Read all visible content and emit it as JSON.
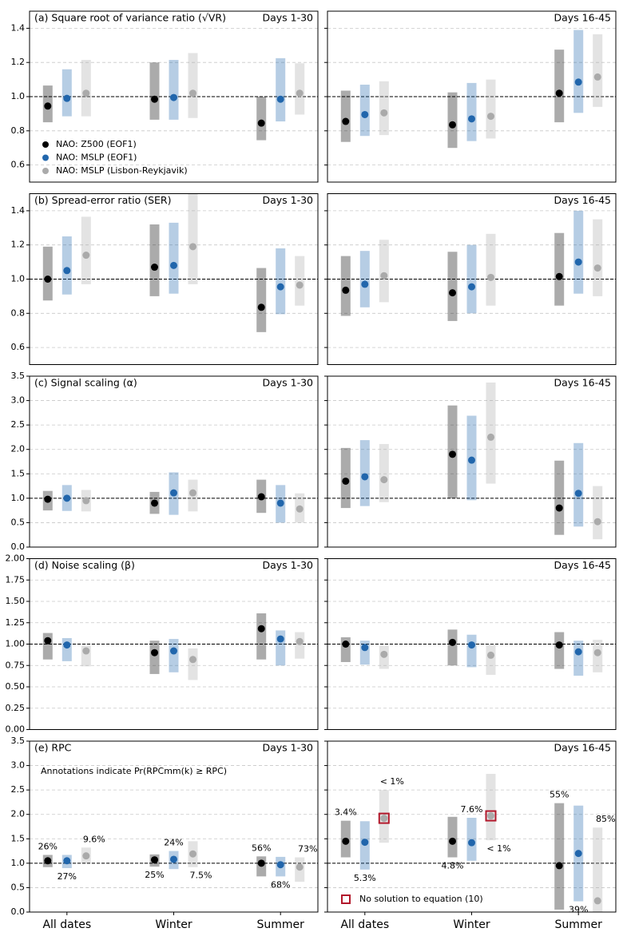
{
  "chart_data": [
    {
      "type": "interval",
      "title": "(a) Square root of variance ratio (√VR)",
      "subtitle": "Days 1-30",
      "ylim": [
        0.5,
        1.5
      ],
      "yticks": [
        0.6,
        0.8,
        {
          "value": 1,
          "label": "1.0"
        },
        1.2,
        1.4
      ],
      "refline": 1,
      "grid": true,
      "legend": "lower left",
      "series": [
        {
          "name": "NAO: Z500 (EOF1)",
          "color": "#000000",
          "values": [
            0.945,
            0.985,
            0.845
          ],
          "low": [
            0.85,
            0.865,
            0.745
          ],
          "high": [
            1.065,
            1.2,
            1.0
          ]
        },
        {
          "name": "NAO: MSLP (EOF1)",
          "color": "#2166ac",
          "values": [
            0.99,
            0.995,
            0.985
          ],
          "low": [
            0.885,
            0.865,
            0.855
          ],
          "high": [
            1.16,
            1.215,
            1.225
          ]
        },
        {
          "name": "NAO: MSLP (Lisbon-Reykjavik)",
          "color": "#aaaaaa",
          "values": [
            1.02,
            1.02,
            1.02
          ],
          "low": [
            0.885,
            0.875,
            0.895
          ],
          "high": [
            1.215,
            1.255,
            1.195
          ]
        }
      ]
    },
    {
      "type": "interval",
      "subtitle": "Days 16-45",
      "ylim": [
        0.5,
        1.5
      ],
      "yticks": [
        0.6,
        0.8,
        1,
        1.2,
        1.4
      ],
      "refline": 1,
      "grid": true,
      "series": [
        {
          "color": "#000000",
          "values": [
            0.855,
            0.835,
            1.02
          ],
          "low": [
            0.735,
            0.7,
            0.85
          ],
          "high": [
            1.035,
            1.025,
            1.275
          ]
        },
        {
          "color": "#2166ac",
          "values": [
            0.895,
            0.87,
            1.085
          ],
          "low": [
            0.77,
            0.74,
            0.905
          ],
          "high": [
            1.07,
            1.08,
            1.39
          ]
        },
        {
          "color": "#aaaaaa",
          "values": [
            0.905,
            0.885,
            1.115
          ],
          "low": [
            0.775,
            0.755,
            0.94
          ],
          "high": [
            1.09,
            1.1,
            1.365
          ]
        }
      ]
    },
    {
      "type": "interval",
      "title": "(b) Spread-error ratio (SER)",
      "subtitle": "Days 1-30",
      "ylim": [
        0.5,
        1.5
      ],
      "yticks": [
        0.6,
        0.8,
        {
          "value": 1,
          "label": "1.0"
        },
        1.2,
        1.4
      ],
      "refline": 1,
      "grid": true,
      "series": [
        {
          "color": "#000000",
          "values": [
            1.0,
            1.07,
            0.835
          ],
          "low": [
            0.875,
            0.9,
            0.69
          ],
          "high": [
            1.19,
            1.32,
            1.065
          ]
        },
        {
          "color": "#2166ac",
          "values": [
            1.05,
            1.08,
            0.955
          ],
          "low": [
            0.91,
            0.915,
            0.795
          ],
          "high": [
            1.25,
            1.33,
            1.18
          ]
        },
        {
          "color": "#aaaaaa",
          "values": [
            1.14,
            1.19,
            0.965
          ],
          "low": [
            0.97,
            0.97,
            0.845
          ],
          "high": [
            1.365,
            1.5,
            1.135
          ]
        }
      ]
    },
    {
      "type": "interval",
      "subtitle": "Days 16-45",
      "ylim": [
        0.5,
        1.5
      ],
      "yticks": [
        0.6,
        0.8,
        1,
        1.2,
        1.4
      ],
      "refline": 1,
      "grid": true,
      "series": [
        {
          "color": "#000000",
          "values": [
            0.935,
            0.92,
            1.015
          ],
          "low": [
            0.785,
            0.755,
            0.845
          ],
          "high": [
            1.135,
            1.16,
            1.27
          ]
        },
        {
          "color": "#2166ac",
          "values": [
            0.97,
            0.955,
            1.1
          ],
          "low": [
            0.835,
            0.8,
            0.915
          ],
          "high": [
            1.165,
            1.2,
            1.4
          ]
        },
        {
          "color": "#aaaaaa",
          "values": [
            1.02,
            1.01,
            1.065
          ],
          "low": [
            0.865,
            0.845,
            0.9
          ],
          "high": [
            1.23,
            1.265,
            1.35
          ]
        }
      ]
    },
    {
      "type": "interval",
      "title": "(c) Signal scaling (α)",
      "subtitle": "Days 1-30",
      "ylim": [
        0,
        3.5
      ],
      "yticks": [
        {
          "value": 0,
          "label": "0.0"
        },
        0.5,
        {
          "value": 1,
          "label": "1.0"
        },
        1.5,
        {
          "value": 2,
          "label": "2.0"
        },
        2.5,
        {
          "value": 3,
          "label": "3.0"
        },
        3.5
      ],
      "refline": 1,
      "grid": true,
      "series": [
        {
          "color": "#000000",
          "values": [
            0.98,
            0.9,
            1.03
          ],
          "low": [
            0.75,
            0.68,
            0.7
          ],
          "high": [
            1.15,
            1.13,
            1.38
          ]
        },
        {
          "color": "#2166ac",
          "values": [
            1.0,
            1.11,
            0.9
          ],
          "low": [
            0.74,
            0.66,
            0.5
          ],
          "high": [
            1.27,
            1.53,
            1.27
          ]
        },
        {
          "color": "#aaaaaa",
          "values": [
            0.95,
            1.11,
            0.78
          ],
          "low": [
            0.73,
            0.73,
            0.5
          ],
          "high": [
            1.17,
            1.38,
            1.1
          ]
        }
      ]
    },
    {
      "type": "interval",
      "subtitle": "Days 16-45",
      "ylim": [
        0,
        3.5
      ],
      "yticks": [
        0,
        0.5,
        1,
        1.5,
        2,
        2.5,
        3,
        3.5
      ],
      "refline": 1,
      "grid": true,
      "series": [
        {
          "color": "#000000",
          "values": [
            1.35,
            1.9,
            0.8
          ],
          "low": [
            0.8,
            1.0,
            0.25
          ],
          "high": [
            2.03,
            2.9,
            1.77
          ]
        },
        {
          "color": "#2166ac",
          "values": [
            1.44,
            1.78,
            1.1
          ],
          "low": [
            0.84,
            0.96,
            0.42
          ],
          "high": [
            2.19,
            2.69,
            2.13
          ]
        },
        {
          "color": "#aaaaaa",
          "values": [
            1.38,
            2.25,
            0.52
          ],
          "low": [
            0.92,
            1.3,
            0.16
          ],
          "high": [
            2.11,
            3.37,
            1.25
          ]
        }
      ]
    },
    {
      "type": "interval",
      "title": "(d) Noise scaling (β)",
      "subtitle": "Days 1-30",
      "ylim": [
        0,
        2
      ],
      "yticks": [
        {
          "value": 0,
          "label": "0.00"
        },
        0.25,
        {
          "value": 0.5,
          "label": "0.50"
        },
        0.75,
        {
          "value": 1,
          "label": "1.00"
        },
        1.25,
        {
          "value": 1.5,
          "label": "1.50"
        },
        1.75,
        {
          "value": 2,
          "label": "2.00"
        }
      ],
      "refline": 1,
      "grid": true,
      "series": [
        {
          "color": "#000000",
          "values": [
            1.04,
            0.9,
            1.18
          ],
          "low": [
            0.82,
            0.65,
            0.82
          ],
          "high": [
            1.13,
            1.04,
            1.36
          ]
        },
        {
          "color": "#2166ac",
          "values": [
            0.99,
            0.92,
            1.06
          ],
          "low": [
            0.8,
            0.67,
            0.75
          ],
          "high": [
            1.07,
            1.06,
            1.16
          ]
        },
        {
          "color": "#aaaaaa",
          "values": [
            0.92,
            0.82,
            1.03
          ],
          "low": [
            0.74,
            0.58,
            0.83
          ],
          "high": [
            0.98,
            0.95,
            1.14
          ]
        }
      ]
    },
    {
      "type": "interval",
      "subtitle": "Days 16-45",
      "ylim": [
        0,
        2
      ],
      "yticks": [
        0,
        0.25,
        0.5,
        0.75,
        1,
        1.25,
        1.5,
        1.75,
        2
      ],
      "refline": 1,
      "grid": true,
      "series": [
        {
          "color": "#000000",
          "values": [
            1.0,
            1.02,
            0.99
          ],
          "low": [
            0.79,
            0.75,
            0.71
          ],
          "high": [
            1.08,
            1.17,
            1.14
          ]
        },
        {
          "color": "#2166ac",
          "values": [
            0.96,
            0.99,
            0.91
          ],
          "low": [
            0.76,
            0.73,
            0.63
          ],
          "high": [
            1.04,
            1.11,
            1.04
          ]
        },
        {
          "color": "#aaaaaa",
          "values": [
            0.88,
            0.87,
            0.9
          ],
          "low": [
            0.71,
            0.64,
            0.67
          ],
          "high": [
            0.98,
            1.0,
            1.05
          ]
        }
      ]
    },
    {
      "type": "interval",
      "title": "(e) RPC",
      "subtitle": "Days 1-30",
      "ylim": [
        0,
        3.5
      ],
      "yticks": [
        {
          "value": 0,
          "label": "0.0"
        },
        0.5,
        {
          "value": 1,
          "label": "1.0"
        },
        1.5,
        {
          "value": 2,
          "label": "2.0"
        },
        2.5,
        {
          "value": 3,
          "label": "3.0"
        },
        3.5
      ],
      "refline": 1,
      "grid": true,
      "note": "Annotations indicate Pr(RPCmm(k) ≥ RPC)",
      "categories": [
        "All dates",
        "Winter",
        "Summer"
      ],
      "series": [
        {
          "color": "#000000",
          "values": [
            1.05,
            1.07,
            1.0
          ],
          "low": [
            0.92,
            0.93,
            0.73
          ],
          "high": [
            1.17,
            1.18,
            1.14
          ],
          "annotations": [
            "26%",
            "25%",
            "56%"
          ]
        },
        {
          "color": "#2166ac",
          "values": [
            1.05,
            1.08,
            0.97
          ],
          "low": [
            0.9,
            0.88,
            0.73
          ],
          "high": [
            1.17,
            1.25,
            1.13
          ],
          "annotations": [
            "27%",
            "24%",
            "68%"
          ]
        },
        {
          "color": "#aaaaaa",
          "values": [
            1.15,
            1.19,
            0.92
          ],
          "low": [
            1.01,
            0.92,
            0.62
          ],
          "high": [
            1.32,
            1.45,
            1.12
          ],
          "annotations": [
            "9.6%",
            "7.5%",
            "73%"
          ]
        }
      ]
    },
    {
      "type": "interval",
      "subtitle": "Days 16-45",
      "ylim": [
        0,
        3.5
      ],
      "yticks": [
        0,
        0.5,
        1,
        1.5,
        2,
        2.5,
        3,
        3.5
      ],
      "refline": 1,
      "grid": true,
      "no_solution_label": "No solution to equation (10)",
      "no_solution_color": "#b2182b",
      "categories": [
        "All dates",
        "Winter",
        "Summer"
      ],
      "series": [
        {
          "color": "#000000",
          "values": [
            1.45,
            1.45,
            0.95
          ],
          "low": [
            1.12,
            1.12,
            0.05
          ],
          "high": [
            1.87,
            1.95,
            2.23
          ],
          "annotations": [
            "3.4%",
            "4.8%",
            "55%"
          ]
        },
        {
          "color": "#2166ac",
          "values": [
            1.43,
            1.42,
            1.2
          ],
          "low": [
            0.87,
            1.05,
            0.22
          ],
          "high": [
            1.86,
            1.93,
            2.18
          ],
          "annotations": [
            "5.3%",
            "7.6%",
            "39%"
          ]
        },
        {
          "color": "#aaaaaa",
          "values": [
            1.92,
            1.97,
            0.23
          ],
          "low": [
            1.42,
            1.47,
            0.0
          ],
          "high": [
            2.5,
            2.83,
            1.73
          ],
          "annotations": [
            "< 1%",
            "< 1%",
            "85%"
          ],
          "no_solution": [
            true,
            true,
            false
          ]
        }
      ]
    }
  ]
}
